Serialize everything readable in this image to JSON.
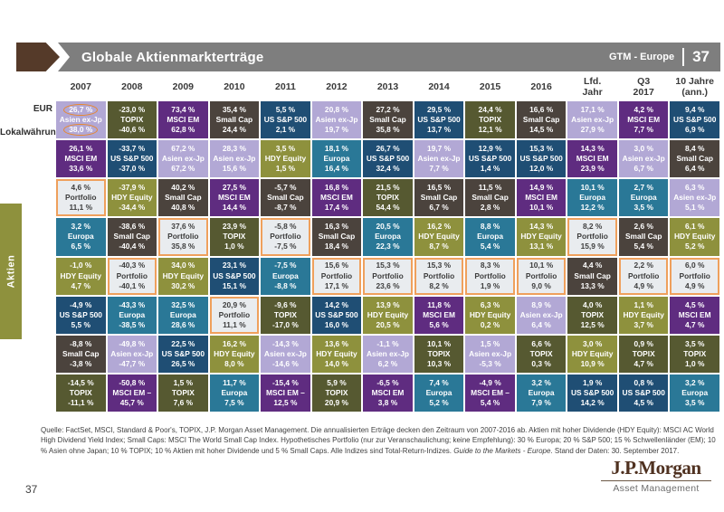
{
  "page": {
    "title": "Globale Aktienmarkterträge",
    "gtm_label": "GTM - Europe",
    "gtm_page": "37",
    "slide_number_footer": "37"
  },
  "left_axis": {
    "top_label": "EUR",
    "bottom_label": "Lokalwährung"
  },
  "section_tab": "Aktien",
  "logo": {
    "name": "J.P.Morgan",
    "sub": "Asset Management"
  },
  "footnote": {
    "part1": "Quelle: FactSet, MSCI, Standard & Poor's, TOPIX, J.P. Morgan Asset Management. Die annualisierten Erträge decken den Zeitraum von 2007-2016 ab. Aktien mit hoher Dividende (HDY Equity): MSCI AC World High Dividend Yield Index; Small Caps: MSCI The World Small Cap Index. Hypothetisches Portfolio (nur zur Veranschaulichung; keine Empfehlung): 30 % Europa; 20 % S&P 500; 15 % Schwellenländer (EM); 10 % Asien ohne Japan; 10 % TOPIX; 10 % Aktien mit hoher Dividende und 5 % Small Caps. Alle Indizes sind Total-Return-Indizes. ",
    "italic": "Guide to the Markets - Europe",
    "part2": ". Stand der Daten: 30. September 2017."
  },
  "chart_data": {
    "type": "table",
    "title": "Globale Aktienmarkterträge",
    "description": "Quilt chart of annual global equity returns per asset class; top value = EUR return, bottom value = local currency return",
    "columns": [
      "2007",
      "2008",
      "2009",
      "2010",
      "2011",
      "2012",
      "2013",
      "2014",
      "2015",
      "2016",
      "Lfd.\nJahr",
      "Q3\n2017",
      "10 Jahre\n(ann.)"
    ],
    "value_rows": [
      "EUR",
      "Lokalwährung"
    ],
    "asset_colors": {
      "Asien ex-Jp": {
        "bg": "#b2a8d5",
        "fg": "#ffffff"
      },
      "MSCI EM": {
        "bg": "#5f2c80",
        "fg": "#ffffff"
      },
      "US S&P 500": {
        "bg": "#1f4e74",
        "fg": "#ffffff"
      },
      "Small Cap": {
        "bg": "#4b433d",
        "fg": "#ffffff"
      },
      "TOPIX": {
        "bg": "#565931",
        "fg": "#ffffff"
      },
      "Europa": {
        "bg": "#2a7897",
        "fg": "#ffffff"
      },
      "HDY Equity": {
        "bg": "#8e913d",
        "fg": "#ffffff"
      },
      "Portfolio": {
        "bg": "#e9ecef",
        "fg": "#3d3d3d",
        "border": "#efa05c"
      }
    },
    "grid": [
      [
        {
          "asset": "Asien ex-Jp",
          "eur": "26,7 %",
          "local": "38,0 %",
          "circled": true
        },
        {
          "asset": "TOPIX",
          "eur": "-23,0 %",
          "local": "-40,6 %"
        },
        {
          "asset": "MSCI EM",
          "eur": "73,4 %",
          "local": "62,8 %"
        },
        {
          "asset": "Small Cap",
          "eur": "35,4 %",
          "local": "24,4 %"
        },
        {
          "asset": "US S&P 500",
          "eur": "5,5 %",
          "local": "2,1 %"
        },
        {
          "asset": "Asien ex-Jp",
          "eur": "20,8 %",
          "local": "19,7 %"
        },
        {
          "asset": "Small Cap",
          "eur": "27,2 %",
          "local": "35,8 %"
        },
        {
          "asset": "US S&P 500",
          "eur": "29,5 %",
          "local": "13,7 %"
        },
        {
          "asset": "TOPIX",
          "eur": "24,4 %",
          "local": "12,1 %"
        },
        {
          "asset": "Small Cap",
          "eur": "16,6 %",
          "local": "14,5 %"
        },
        {
          "asset": "Asien ex-Jp",
          "eur": "17,1 %",
          "local": "27,9 %"
        },
        {
          "asset": "MSCI EM",
          "eur": "4,2 %",
          "local": "7,7 %"
        },
        {
          "asset": "US S&P 500",
          "eur": "9,4 %",
          "local": "6,9 %"
        }
      ],
      [
        {
          "asset": "MSCI EM",
          "eur": "26,1 %",
          "local": "33,6 %"
        },
        {
          "asset": "US S&P 500",
          "eur": "-33,7 %",
          "local": "-37,0 %"
        },
        {
          "asset": "Asien ex-Jp",
          "eur": "67,2 %",
          "local": "67,2 %"
        },
        {
          "asset": "Asien ex-Jp",
          "eur": "28,3 %",
          "local": "15,6 %"
        },
        {
          "asset": "HDY Equity",
          "eur": "3,5 %",
          "local": "1,5 %"
        },
        {
          "asset": "Europa",
          "eur": "18,1 %",
          "local": "16,4 %"
        },
        {
          "asset": "US S&P 500",
          "eur": "26,7 %",
          "local": "32,4 %"
        },
        {
          "asset": "Asien ex-Jp",
          "eur": "19,7 %",
          "local": "7,7 %"
        },
        {
          "asset": "US S&P 500",
          "eur": "12,9 %",
          "local": "1,4 %"
        },
        {
          "asset": "US S&P 500",
          "eur": "15,3 %",
          "local": "12,0 %"
        },
        {
          "asset": "MSCI EM",
          "eur": "14,3 %",
          "local": "23,9 %"
        },
        {
          "asset": "Asien ex-Jp",
          "eur": "3,0 %",
          "local": "6,7 %"
        },
        {
          "asset": "Small Cap",
          "eur": "8,4 %",
          "local": "6,4 %"
        }
      ],
      [
        {
          "asset": "Portfolio",
          "eur": "4,6 %",
          "local": "11,1 %"
        },
        {
          "asset": "HDY Equity",
          "eur": "-37,9 %",
          "local": "-34,4 %"
        },
        {
          "asset": "Small Cap",
          "eur": "40,2 %",
          "local": "40,8 %"
        },
        {
          "asset": "MSCI EM",
          "eur": "27,5 %",
          "local": "14,4 %"
        },
        {
          "asset": "Small Cap",
          "eur": "-5,7 %",
          "local": "-8,7 %"
        },
        {
          "asset": "MSCI EM",
          "eur": "16,8 %",
          "local": "17,4 %"
        },
        {
          "asset": "TOPIX",
          "eur": "21,5 %",
          "local": "54,4 %"
        },
        {
          "asset": "Small Cap",
          "eur": "16,5 %",
          "local": "6,7 %"
        },
        {
          "asset": "Small Cap",
          "eur": "11,5 %",
          "local": "2,8 %"
        },
        {
          "asset": "MSCI EM",
          "eur": "14,9 %",
          "local": "10,1 %"
        },
        {
          "asset": "Europa",
          "eur": "10,1 %",
          "local": "12,2 %"
        },
        {
          "asset": "Europa",
          "eur": "2,7 %",
          "local": "3,5 %"
        },
        {
          "asset": "Asien ex-Jp",
          "eur": "6,3 %",
          "local": "5,1 %"
        }
      ],
      [
        {
          "asset": "Europa",
          "eur": "3,2 %",
          "local": "6,5 %"
        },
        {
          "asset": "Small Cap",
          "eur": "-38,6 %",
          "local": "-40,4 %"
        },
        {
          "asset": "Portfolio",
          "eur": "37,6 %",
          "local": "35,8 %"
        },
        {
          "asset": "TOPIX",
          "eur": "23,9 %",
          "local": "1,0 %"
        },
        {
          "asset": "Portfolio",
          "eur": "-5,8 %",
          "local": "-7,5 %"
        },
        {
          "asset": "Small Cap",
          "eur": "16,3 %",
          "local": "18,4 %"
        },
        {
          "asset": "Europa",
          "eur": "20,5 %",
          "local": "22,3 %"
        },
        {
          "asset": "HDY Equity",
          "eur": "16,2 %",
          "local": "8,7 %"
        },
        {
          "asset": "Europa",
          "eur": "8,8 %",
          "local": "5,4 %"
        },
        {
          "asset": "HDY Equity",
          "eur": "14,3 %",
          "local": "13,1 %"
        },
        {
          "asset": "Portfolio",
          "eur": "8,2 %",
          "local": "15,9 %"
        },
        {
          "asset": "Small Cap",
          "eur": "2,6 %",
          "local": "5,4 %"
        },
        {
          "asset": "HDY Equity",
          "eur": "6,1 %",
          "local": "5,2 %"
        }
      ],
      [
        {
          "asset": "HDY Equity",
          "eur": "-1,0 %",
          "local": "4,7 %"
        },
        {
          "asset": "Portfolio",
          "eur": "-40,3 %",
          "local": "-40,1 %"
        },
        {
          "asset": "HDY Equity",
          "eur": "34,0 %",
          "local": "30,2 %"
        },
        {
          "asset": "US S&P 500",
          "eur": "23,1 %",
          "local": "15,1 %"
        },
        {
          "asset": "Europa",
          "eur": "-7,5 %",
          "local": "-8,8 %"
        },
        {
          "asset": "Portfolio",
          "eur": "15,6 %",
          "local": "17,1 %"
        },
        {
          "asset": "Portfolio",
          "eur": "15,3 %",
          "local": "23,6 %"
        },
        {
          "asset": "Portfolio",
          "eur": "15,3 %",
          "local": "8,2 %"
        },
        {
          "asset": "Portfolio",
          "eur": "8,3 %",
          "local": "1,9 %"
        },
        {
          "asset": "Portfolio",
          "eur": "10,1 %",
          "local": "9,0 %"
        },
        {
          "asset": "Small Cap",
          "eur": "4,4 %",
          "local": "13,3 %"
        },
        {
          "asset": "Portfolio",
          "eur": "2,2 %",
          "local": "4,9 %"
        },
        {
          "asset": "Portfolio",
          "eur": "6,0 %",
          "local": "4,9 %"
        }
      ],
      [
        {
          "asset": "US S&P 500",
          "eur": "-4,9 %",
          "local": "5,5 %"
        },
        {
          "asset": "Europa",
          "eur": "-43,3 %",
          "local": "-38,5 %"
        },
        {
          "asset": "Europa",
          "eur": "32,5 %",
          "local": "28,6 %"
        },
        {
          "asset": "Portfolio",
          "eur": "20,9 %",
          "local": "11,1 %"
        },
        {
          "asset": "TOPIX",
          "eur": "-9,6 %",
          "local": "-17,0 %"
        },
        {
          "asset": "US S&P 500",
          "eur": "14,2 %",
          "local": "16,0 %"
        },
        {
          "asset": "HDY Equity",
          "eur": "13,9 %",
          "local": "20,5 %"
        },
        {
          "asset": "MSCI EM",
          "eur": "11,8 %",
          "local": "5,6 %"
        },
        {
          "asset": "HDY Equity",
          "eur": "6,3 %",
          "local": "0,2 %"
        },
        {
          "asset": "Asien ex-Jp",
          "eur": "8,9 %",
          "local": "6,4 %"
        },
        {
          "asset": "TOPIX",
          "eur": "4,0 %",
          "local": "12,5 %"
        },
        {
          "asset": "HDY Equity",
          "eur": "1,1 %",
          "local": "3,7 %"
        },
        {
          "asset": "MSCI EM",
          "eur": "4,5 %",
          "local": "4,7 %"
        }
      ],
      [
        {
          "asset": "Small Cap",
          "eur": "-8,8 %",
          "local": "-3,8 %"
        },
        {
          "asset": "Asien ex-Jp",
          "eur": "-49,8 %",
          "local": "-47,7 %"
        },
        {
          "asset": "US S&P 500",
          "eur": "22,5 %",
          "local": "26,5 %"
        },
        {
          "asset": "HDY Equity",
          "eur": "16,2 %",
          "local": "8,0 %"
        },
        {
          "asset": "Asien ex-Jp",
          "eur": "-14,3 %",
          "local": "-14,6 %"
        },
        {
          "asset": "HDY Equity",
          "eur": "13,6 %",
          "local": "14,0 %"
        },
        {
          "asset": "Asien ex-Jp",
          "eur": "-1,1 %",
          "local": "6,2 %"
        },
        {
          "asset": "TOPIX",
          "eur": "10,1 %",
          "local": "10,3 %"
        },
        {
          "asset": "Asien ex-Jp",
          "eur": "1,5 %",
          "local": "-5,3 %"
        },
        {
          "asset": "TOPIX",
          "eur": "6,6 %",
          "local": "0,3 %"
        },
        {
          "asset": "HDY Equity",
          "eur": "3,0 %",
          "local": "10,9 %"
        },
        {
          "asset": "TOPIX",
          "eur": "0,9 %",
          "local": "4,7 %"
        },
        {
          "asset": "TOPIX",
          "eur": "3,5 %",
          "local": "1,0 %"
        }
      ],
      [
        {
          "asset": "TOPIX",
          "eur": "-14,5 %",
          "local": "-11,1 %"
        },
        {
          "asset": "MSCI EM",
          "label": "MSCI EM –",
          "eur": "-50,8 %",
          "local": "45,7 %"
        },
        {
          "asset": "TOPIX",
          "eur": "1,5 %",
          "local": "7,6 %"
        },
        {
          "asset": "Europa",
          "eur": "11,7 %",
          "local": "7,5 %"
        },
        {
          "asset": "MSCI EM",
          "label": "MSCI EM –",
          "eur": "-15,4 %",
          "local": "12,5 %"
        },
        {
          "asset": "TOPIX",
          "eur": "5,9 %",
          "local": "20,9 %"
        },
        {
          "asset": "MSCI EM",
          "eur": "-6,5 %",
          "local": "3,8 %"
        },
        {
          "asset": "Europa",
          "eur": "7,4 %",
          "local": "5,2 %"
        },
        {
          "asset": "MSCI EM",
          "label": "MSCI EM –",
          "eur": "-4,9 %",
          "local": "5,4 %"
        },
        {
          "asset": "Europa",
          "eur": "3,2 %",
          "local": "7,9 %"
        },
        {
          "asset": "US S&P 500",
          "eur": "1,9 %",
          "local": "14,2 %"
        },
        {
          "asset": "US S&P 500",
          "eur": "0,8 %",
          "local": "4,5 %"
        },
        {
          "asset": "Europa",
          "eur": "3,2 %",
          "local": "3,5 %"
        }
      ]
    ]
  }
}
